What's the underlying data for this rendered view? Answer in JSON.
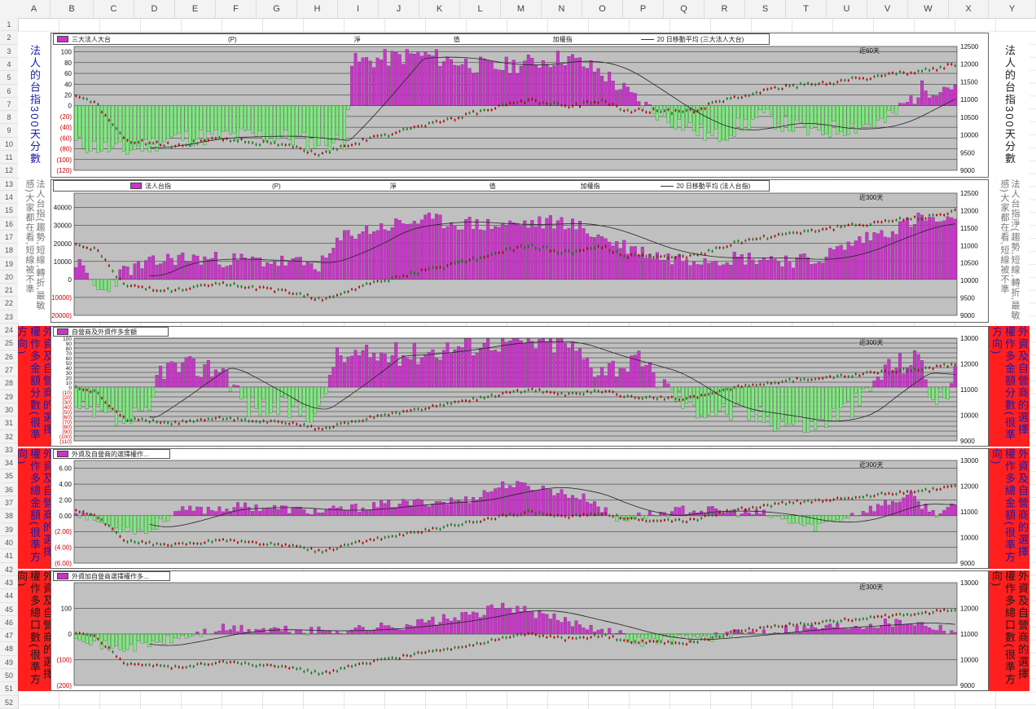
{
  "spreadsheet": {
    "columns": [
      "A",
      "B",
      "C",
      "D",
      "E",
      "F",
      "G",
      "H",
      "I",
      "J",
      "K",
      "L",
      "M",
      "N",
      "O",
      "P",
      "Q",
      "R",
      "S",
      "T",
      "U",
      "V",
      "W",
      "X",
      "Y"
    ],
    "rows": [
      "1",
      "2",
      "3",
      "4",
      "5",
      "6",
      "7",
      "8",
      "9",
      "10",
      "11",
      "12",
      "13",
      "14",
      "15",
      "16",
      "17",
      "18",
      "19",
      "20",
      "21",
      "22",
      "23",
      "24",
      "25",
      "26",
      "27",
      "28",
      "29",
      "30",
      "31",
      "32",
      "33",
      "34",
      "35",
      "36",
      "37",
      "38",
      "39",
      "40",
      "41",
      "42",
      "43",
      "44",
      "45",
      "46",
      "47",
      "48",
      "49",
      "50",
      "51",
      "52"
    ]
  },
  "labels": {
    "left1": "法人的台指300天分數",
    "right1": "法人的台指300天分數",
    "left2": "法人台指(趨勢,短線,轉折,最敏感)大家都在看,短線被不準",
    "right2": "法人台指淨(趨勢,短線,轉折,最敏感)大家都在看,短線被不準",
    "left3": "外資及自營商的選擇權作多金額分數(很準方向)",
    "right3": "外資及自營商的選擇權作多金額分數(很準方向)",
    "left4": "外資及自營商的選擇權作多總金額(很準方向)",
    "right4": "外資及自營商的選擇權作多總金額(很準方向)",
    "left5": "外資及自營商的選擇權作多總口數(很準方向)",
    "right5": "外資及自營商的選擇權作多總口數(很準方向)"
  },
  "colors": {
    "positive": "#cc33cc",
    "negative": "#80e880",
    "plot_bg": "#c0c0c0",
    "label_red_bg": "#ff1f1f",
    "label_blue_text": "#1a1aa8",
    "neg_tick": "#cc0000"
  },
  "charts": [
    {
      "legend": [
        "三大法人大台",
        "(P)",
        "淨",
        "值",
        "加權指",
        "20 日移動平均 (三大法人大台)"
      ],
      "tag": "近60天",
      "yleft": [
        "100",
        "80",
        "60",
        "40",
        "20",
        "0",
        "(20)",
        "(40)",
        "(60)",
        "(80)",
        "(100)",
        "(120)"
      ],
      "yright": [
        "12500",
        "12000",
        "11500",
        "11000",
        "10500",
        "10000",
        "9500",
        "9000"
      ]
    },
    {
      "legend": [
        "法人台指",
        "(P)",
        "淨",
        "值",
        "加權指",
        "20 日移動平均 (法人台指)"
      ],
      "tag": "近300天",
      "yleft": [
        "40000",
        "30000",
        "20000",
        "10000",
        "0",
        "(10000)",
        "(20000)"
      ],
      "yright": [
        "12500",
        "12000",
        "11500",
        "11000",
        "10500",
        "10000",
        "9500",
        "9000"
      ]
    },
    {
      "legend": [
        "自營商及外資作多金額"
      ],
      "tag": "近300天",
      "yleft": [
        "100",
        "90",
        "80",
        "70",
        "60",
        "50",
        "40",
        "30",
        "20",
        "10",
        "0",
        "(10)",
        "(20)",
        "(30)",
        "(40)",
        "(50)",
        "(60)",
        "(70)",
        "(80)",
        "(90)",
        "(100)",
        "(110)"
      ],
      "yright": [
        "13000",
        "12000",
        "11000",
        "10000",
        "9000"
      ]
    },
    {
      "legend": [
        "外資及自營商的選擇權作..."
      ],
      "tag": "近300天",
      "yleft": [
        "6.00",
        "4.00",
        "2.00",
        "0.00",
        "(2.00)",
        "(4.00)",
        "(6.00)"
      ],
      "yright": [
        "13000",
        "12000",
        "11000",
        "10000",
        "9000"
      ]
    },
    {
      "legend": [
        "外資加自營商選擇權作多..."
      ],
      "tag": "近300天",
      "yleft": [
        "100",
        "0",
        "(100)",
        "(200)"
      ],
      "yright": [
        "13000",
        "12000",
        "11000",
        "10000",
        "9000"
      ]
    }
  ]
}
